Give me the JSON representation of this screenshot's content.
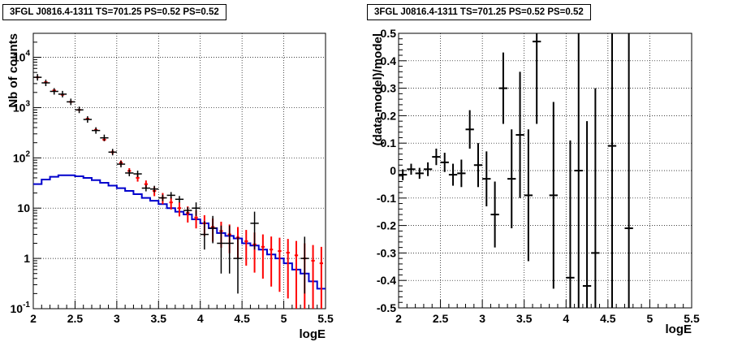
{
  "chart_data": [
    {
      "type": "histogram",
      "title": "3FGL J0816.4-1311 TS=701.25 PS=0.52 PS=0.52",
      "xlabel": "logE",
      "ylabel": "Nb of counts",
      "xlim": [
        2,
        5.5
      ],
      "ylim": [
        0.1,
        30000
      ],
      "yscale": "log",
      "grid": true,
      "bin_width": 0.1,
      "x_ticks": [
        "2",
        "2.5",
        "3",
        "3.5",
        "4",
        "4.5",
        "5",
        "5.5"
      ],
      "y_ticks": [
        {
          "value": 0.1,
          "label": "10",
          "exp": "-1"
        },
        {
          "value": 1,
          "label": "1",
          "exp": ""
        },
        {
          "value": 10,
          "label": "10",
          "exp": ""
        },
        {
          "value": 100,
          "label": "10",
          "exp": "2"
        },
        {
          "value": 1000,
          "label": "10",
          "exp": "3"
        },
        {
          "value": 10000,
          "label": "10",
          "exp": "4"
        }
      ],
      "data_points": {
        "color": "#000000",
        "x": [
          2.05,
          2.15,
          2.25,
          2.35,
          2.45,
          2.55,
          2.65,
          2.75,
          2.85,
          2.95,
          3.05,
          3.15,
          3.25,
          3.35,
          3.45,
          3.55,
          3.65,
          3.75,
          3.85,
          3.95,
          4.05,
          4.15,
          4.25,
          4.35,
          4.45,
          4.65,
          5.25
        ],
        "y": [
          4000,
          3100,
          2100,
          1850,
          1300,
          900,
          580,
          350,
          250,
          130,
          75,
          50,
          48,
          25,
          24,
          16,
          18,
          15,
          9,
          10,
          3,
          4,
          2,
          2,
          1,
          5,
          1
        ],
        "yerr_lo": [
          0,
          0,
          0,
          0,
          0,
          0,
          0,
          0,
          0,
          0,
          0,
          0,
          0,
          0,
          0,
          0,
          0,
          0,
          0,
          3,
          1.5,
          2,
          1.5,
          1.5,
          0.8,
          3.5,
          0.8
        ],
        "yerr_hi": [
          0,
          0,
          0,
          0,
          0,
          0,
          0,
          0,
          0,
          0,
          0,
          0,
          0,
          0,
          0,
          0,
          0,
          0,
          0,
          3,
          2.5,
          3,
          2.5,
          2.5,
          1.7,
          3.5,
          1.7
        ]
      },
      "model_total": {
        "color": "#ff0000",
        "x": [
          2.05,
          2.15,
          2.25,
          2.35,
          2.45,
          2.55,
          2.65,
          2.75,
          2.85,
          2.95,
          3.05,
          3.15,
          3.25,
          3.35,
          3.45,
          3.55,
          3.65,
          3.75,
          3.85,
          3.95,
          4.05,
          4.15,
          4.25,
          4.35,
          4.45,
          4.55,
          4.65,
          4.75,
          4.85,
          4.95,
          5.05,
          5.15,
          5.25,
          5.35,
          5.45
        ],
        "y": [
          4000,
          3200,
          2200,
          1800,
          1300,
          900,
          600,
          360,
          230,
          130,
          80,
          55,
          40,
          30,
          22,
          16,
          13,
          10,
          8,
          6.5,
          5,
          4.2,
          3.5,
          3,
          2.6,
          2.2,
          1.9,
          1.7,
          1.5,
          1.4,
          1.3,
          1.15,
          1.0,
          0.9,
          0.8
        ]
      },
      "model_source": {
        "color": "#0000cc",
        "x": [
          2.05,
          2.15,
          2.25,
          2.35,
          2.45,
          2.55,
          2.65,
          2.75,
          2.85,
          2.95,
          3.05,
          3.15,
          3.25,
          3.35,
          3.45,
          3.55,
          3.65,
          3.75,
          3.85,
          3.95,
          4.05,
          4.15,
          4.25,
          4.35,
          4.45,
          4.55,
          4.65,
          4.75,
          4.85,
          4.95,
          5.05,
          5.15,
          5.25,
          5.35,
          5.45
        ],
        "y": [
          30,
          37,
          42,
          45,
          45,
          43,
          40,
          36,
          32,
          28,
          25,
          22,
          19,
          16,
          14,
          12,
          10,
          8.5,
          7.5,
          6,
          5,
          4,
          3.2,
          2.8,
          2.5,
          2,
          1.8,
          1.5,
          1.2,
          1,
          0.8,
          0.6,
          0.5,
          0.35,
          0.25
        ]
      }
    },
    {
      "type": "scatter",
      "title": "3FGL J0816.4-1311 TS=701.25 PS=0.52 PS=0.52",
      "xlabel": "logE",
      "ylabel": "(data-model)/model",
      "xlim": [
        2,
        5.5
      ],
      "ylim": [
        -0.5,
        0.5
      ],
      "grid": true,
      "bin_width": 0.1,
      "x_ticks": [
        "2",
        "2.5",
        "3",
        "3.5",
        "4",
        "4.5",
        "5",
        "5.5"
      ],
      "y_ticks": [
        "-0.5",
        "-0.4",
        "-0.3",
        "-0.2",
        "-0.1",
        "0",
        "0.1",
        "0.2",
        "0.3",
        "0.4",
        "0.5"
      ],
      "points": {
        "color": "#000000",
        "x": [
          2.05,
          2.15,
          2.25,
          2.35,
          2.45,
          2.55,
          2.65,
          2.75,
          2.85,
          2.95,
          3.05,
          3.15,
          3.25,
          3.35,
          3.45,
          3.55,
          3.65,
          3.85,
          4.05,
          4.15,
          4.25,
          4.35,
          4.55,
          4.75
        ],
        "y": [
          -0.015,
          0.005,
          -0.01,
          0.005,
          0.05,
          0.03,
          -0.015,
          -0.01,
          0.15,
          0.02,
          -0.03,
          -0.16,
          0.3,
          -0.03,
          0.13,
          -0.09,
          0.47,
          -0.09,
          -0.39,
          0.0,
          -0.42,
          -0.3,
          0.09,
          -0.21
        ],
        "err": [
          0.02,
          0.02,
          0.02,
          0.025,
          0.03,
          0.035,
          0.04,
          0.05,
          0.07,
          0.08,
          0.1,
          0.12,
          0.13,
          0.18,
          0.23,
          0.24,
          0.3,
          0.34,
          0.5,
          0.6,
          0.6,
          0.6,
          0.7,
          0.8
        ]
      }
    }
  ]
}
